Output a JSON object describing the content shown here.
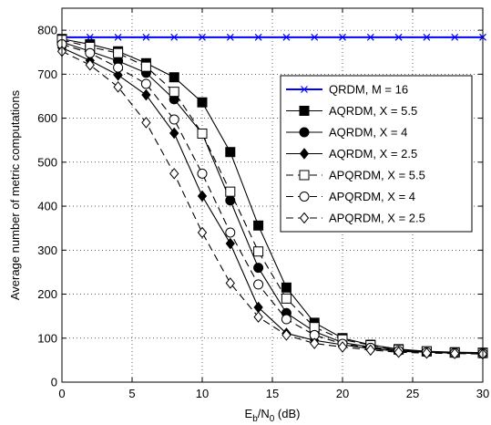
{
  "chart_data": {
    "type": "line",
    "xlabel": {
      "main": "E",
      "sub1": "b",
      "mid": "/N",
      "sub2": "0",
      "tail": " (dB)"
    },
    "ylabel": "Average number of metric computations",
    "xlim": [
      0,
      30
    ],
    "ylim": [
      0,
      850
    ],
    "xticks": [
      "0",
      "5",
      "10",
      "15",
      "20",
      "25",
      "30"
    ],
    "yticks": [
      "0",
      "100",
      "200",
      "300",
      "400",
      "500",
      "600",
      "700",
      "800"
    ],
    "grid": true,
    "legend_position": "top-right",
    "x": [
      0,
      2,
      4,
      6,
      8,
      10,
      12,
      14,
      16,
      18,
      20,
      22,
      24,
      26,
      28,
      30
    ],
    "series": [
      {
        "name": "QRDM, M = 16",
        "color": "#0000ff",
        "dash": "solid",
        "marker": "x",
        "values": [
          784,
          784,
          784,
          784,
          784,
          784,
          784,
          784,
          784,
          784,
          784,
          784,
          784,
          784,
          784,
          784
        ]
      },
      {
        "name": "AQRDM, X = 5.5",
        "color": "#000000",
        "dash": "solid",
        "marker": "square-filled",
        "values": [
          780,
          768,
          752,
          725,
          693,
          636,
          523,
          356,
          215,
          135,
          100,
          85,
          75,
          70,
          68,
          67
        ]
      },
      {
        "name": "AQRDM, X = 4",
        "color": "#000000",
        "dash": "solid",
        "marker": "circle-filled",
        "values": [
          773,
          752,
          730,
          703,
          643,
          565,
          413,
          260,
          157,
          115,
          90,
          80,
          73,
          69,
          67,
          66
        ]
      },
      {
        "name": "AQRDM, X = 2.5",
        "color": "#000000",
        "dash": "solid",
        "marker": "diamond-filled",
        "values": [
          760,
          731,
          698,
          653,
          566,
          423,
          315,
          170,
          111,
          95,
          85,
          76,
          70,
          68,
          66,
          65
        ]
      },
      {
        "name": "APQRDM, X = 5.5",
        "color": "#000000",
        "dash": "dashed",
        "marker": "square-open",
        "values": [
          778,
          762,
          748,
          717,
          660,
          565,
          433,
          297,
          190,
          125,
          97,
          84,
          74,
          70,
          67,
          66
        ]
      },
      {
        "name": "APQRDM, X = 4",
        "color": "#000000",
        "dash": "dashed",
        "marker": "circle-open",
        "values": [
          768,
          748,
          715,
          678,
          597,
          474,
          340,
          222,
          143,
          107,
          87,
          78,
          71,
          68,
          66,
          65
        ]
      },
      {
        "name": "APQRDM, X = 2.5",
        "color": "#000000",
        "dash": "dashed",
        "marker": "diamond-open",
        "values": [
          752,
          721,
          671,
          590,
          474,
          340,
          225,
          148,
          107,
          88,
          80,
          73,
          68,
          66,
          65,
          64
        ]
      }
    ]
  }
}
